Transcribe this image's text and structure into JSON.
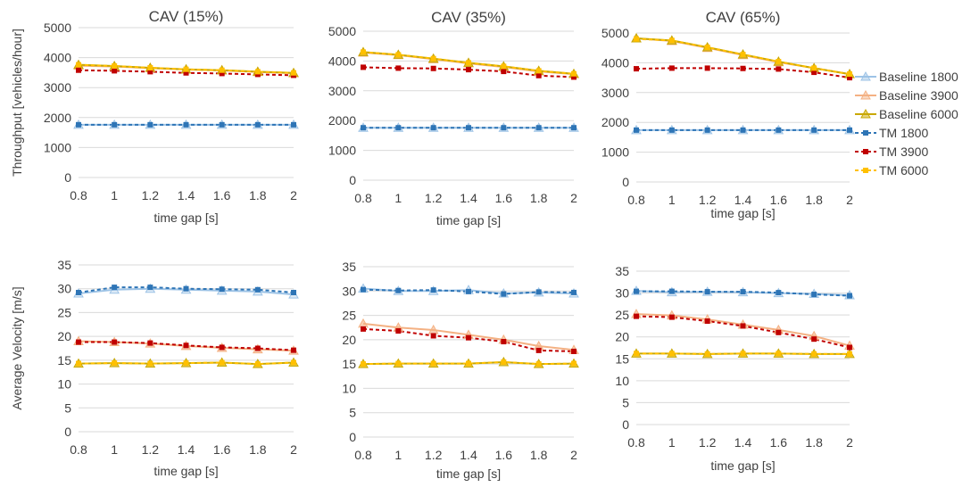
{
  "series_styles": [
    {
      "name": "Baseline 1800",
      "color": "#9dc3e6",
      "marker": "triangle",
      "dash": "none"
    },
    {
      "name": "Baseline 3900",
      "color": "#f4b183",
      "marker": "triangle",
      "dash": "none"
    },
    {
      "name": "Baseline 6000",
      "color": "#c9a800",
      "marker": "triangle",
      "dash": "none"
    },
    {
      "name": "TM 1800",
      "color": "#2e75b6",
      "marker": "square",
      "dash": "4,3"
    },
    {
      "name": "TM 3900",
      "color": "#c00000",
      "marker": "square",
      "dash": "4,3"
    },
    {
      "name": "TM 6000",
      "color": "#ffc000",
      "marker": "square",
      "dash": "4,3"
    }
  ],
  "chart_data": [
    {
      "type": "line",
      "title": "CAV (15%)",
      "xlabel": "time gap [s]",
      "ylabel": "Throughput [vehicles/hour]",
      "x": [
        0.8,
        1,
        1.2,
        1.4,
        1.6,
        1.8,
        2
      ],
      "ylim": [
        0,
        5000
      ],
      "yticks": [
        0,
        1000,
        2000,
        3000,
        4000,
        5000
      ],
      "series": [
        {
          "name": "Baseline 1800",
          "values": [
            1760,
            1760,
            1760,
            1760,
            1760,
            1760,
            1760
          ]
        },
        {
          "name": "Baseline 3900",
          "values": [
            3730,
            3700,
            3650,
            3600,
            3570,
            3520,
            3480
          ]
        },
        {
          "name": "Baseline 6000",
          "values": [
            3760,
            3720,
            3660,
            3610,
            3580,
            3530,
            3490
          ]
        },
        {
          "name": "TM 1800",
          "values": [
            1760,
            1760,
            1760,
            1760,
            1760,
            1760,
            1760
          ]
        },
        {
          "name": "TM 3900",
          "values": [
            3580,
            3560,
            3530,
            3490,
            3470,
            3440,
            3410
          ]
        },
        {
          "name": "TM 6000",
          "values": [
            3760,
            3720,
            3660,
            3610,
            3580,
            3530,
            3490
          ]
        }
      ]
    },
    {
      "type": "line",
      "title": "CAV (35%)",
      "xlabel": "time gap [s]",
      "ylabel": "",
      "x": [
        0.8,
        1,
        1.2,
        1.4,
        1.6,
        1.8,
        2
      ],
      "ylim": [
        0,
        5000
      ],
      "yticks": [
        0,
        1000,
        2000,
        3000,
        4000,
        5000
      ],
      "series": [
        {
          "name": "Baseline 1800",
          "values": [
            1760,
            1760,
            1760,
            1760,
            1760,
            1760,
            1760
          ]
        },
        {
          "name": "Baseline 3900",
          "values": [
            4280,
            4200,
            4060,
            3920,
            3800,
            3650,
            3560
          ]
        },
        {
          "name": "Baseline 6000",
          "values": [
            4300,
            4210,
            4080,
            3940,
            3820,
            3670,
            3570
          ]
        },
        {
          "name": "TM 1800",
          "values": [
            1760,
            1760,
            1760,
            1760,
            1760,
            1760,
            1760
          ]
        },
        {
          "name": "TM 3900",
          "values": [
            3790,
            3760,
            3750,
            3710,
            3650,
            3510,
            3460
          ]
        },
        {
          "name": "TM 6000",
          "values": [
            4300,
            4210,
            4080,
            3940,
            3820,
            3670,
            3570
          ]
        }
      ]
    },
    {
      "type": "line",
      "title": "CAV (65%)",
      "xlabel": "time gap [s]",
      "ylabel": "",
      "x": [
        0.8,
        1,
        1.2,
        1.4,
        1.6,
        1.8,
        2
      ],
      "ylim": [
        0,
        5000
      ],
      "yticks": [
        0,
        1000,
        2000,
        3000,
        4000,
        5000
      ],
      "series": [
        {
          "name": "Baseline 1800",
          "values": [
            1740,
            1740,
            1740,
            1740,
            1740,
            1740,
            1740
          ]
        },
        {
          "name": "Baseline 3900",
          "values": [
            4820,
            4730,
            4500,
            4260,
            4020,
            3820,
            3620
          ]
        },
        {
          "name": "Baseline 6000",
          "values": [
            4820,
            4750,
            4520,
            4280,
            4040,
            3820,
            3620
          ]
        },
        {
          "name": "TM 1800",
          "values": [
            1740,
            1740,
            1740,
            1740,
            1740,
            1740,
            1740
          ]
        },
        {
          "name": "TM 3900",
          "values": [
            3800,
            3820,
            3820,
            3810,
            3790,
            3680,
            3500
          ]
        },
        {
          "name": "TM 6000",
          "values": [
            4800,
            4750,
            4520,
            4280,
            4040,
            3820,
            3620
          ]
        }
      ]
    },
    {
      "type": "line",
      "title": "",
      "xlabel": "time gap [s]",
      "ylabel": "Average Velocity [m/s]",
      "x": [
        0.8,
        1,
        1.2,
        1.4,
        1.6,
        1.8,
        2
      ],
      "ylim": [
        0,
        35
      ],
      "yticks": [
        0,
        5,
        10,
        15,
        20,
        25,
        30,
        35
      ],
      "series": [
        {
          "name": "Baseline 1800",
          "values": [
            29.0,
            29.8,
            30.0,
            29.8,
            29.6,
            29.4,
            28.8
          ]
        },
        {
          "name": "Baseline 3900",
          "values": [
            19.0,
            18.8,
            18.5,
            18.0,
            17.6,
            17.3,
            17.0
          ]
        },
        {
          "name": "Baseline 6000",
          "values": [
            14.3,
            14.4,
            14.3,
            14.4,
            14.5,
            14.2,
            14.5
          ]
        },
        {
          "name": "TM 1800",
          "values": [
            29.2,
            30.3,
            30.3,
            30.0,
            29.9,
            29.8,
            29.2
          ]
        },
        {
          "name": "TM 3900",
          "values": [
            18.8,
            18.8,
            18.6,
            18.1,
            17.7,
            17.5,
            17.1
          ]
        },
        {
          "name": "TM 6000",
          "values": [
            14.3,
            14.4,
            14.3,
            14.4,
            14.5,
            14.2,
            14.5
          ]
        }
      ]
    },
    {
      "type": "line",
      "title": "",
      "xlabel": "time gap [s]",
      "ylabel": "",
      "x": [
        0.8,
        1,
        1.2,
        1.4,
        1.6,
        1.8,
        2
      ],
      "ylim": [
        0,
        35
      ],
      "yticks": [
        0,
        5,
        10,
        15,
        20,
        25,
        30,
        35
      ],
      "series": [
        {
          "name": "Baseline 1800",
          "values": [
            30.5,
            30.0,
            30.0,
            30.2,
            29.5,
            29.7,
            29.5
          ]
        },
        {
          "name": "Baseline 3900",
          "values": [
            23.3,
            22.5,
            22.0,
            21.0,
            20.0,
            18.7,
            17.9
          ]
        },
        {
          "name": "Baseline 6000",
          "values": [
            15.0,
            15.1,
            15.1,
            15.1,
            15.4,
            15.0,
            15.1
          ]
        },
        {
          "name": "TM 1800",
          "values": [
            30.3,
            30.1,
            30.2,
            29.9,
            29.4,
            29.8,
            29.7
          ]
        },
        {
          "name": "TM 3900",
          "values": [
            22.2,
            21.8,
            20.8,
            20.4,
            19.6,
            17.8,
            17.6
          ]
        },
        {
          "name": "TM 6000",
          "values": [
            15.0,
            15.1,
            15.1,
            15.1,
            15.4,
            15.0,
            15.1
          ]
        }
      ]
    },
    {
      "type": "line",
      "title": "",
      "xlabel": "time gap [s]",
      "ylabel": "",
      "x": [
        0.8,
        1,
        1.2,
        1.4,
        1.6,
        1.8,
        2
      ],
      "ylim": [
        0,
        35
      ],
      "yticks": [
        0,
        5,
        10,
        15,
        20,
        25,
        30,
        35
      ],
      "series": [
        {
          "name": "Baseline 1800",
          "values": [
            30.5,
            30.2,
            30.3,
            30.2,
            30.0,
            29.8,
            29.5
          ]
        },
        {
          "name": "Baseline 3900",
          "values": [
            25.2,
            24.9,
            24.0,
            22.8,
            21.6,
            20.2,
            18.0
          ]
        },
        {
          "name": "Baseline 6000",
          "values": [
            16.2,
            16.2,
            16.1,
            16.2,
            16.2,
            16.1,
            16.1
          ]
        },
        {
          "name": "TM 1800",
          "values": [
            30.4,
            30.4,
            30.3,
            30.3,
            30.1,
            29.7,
            29.4
          ]
        },
        {
          "name": "TM 3900",
          "values": [
            24.7,
            24.5,
            23.6,
            22.5,
            21.0,
            19.5,
            17.6
          ]
        },
        {
          "name": "TM 6000",
          "values": [
            16.2,
            16.2,
            16.1,
            16.2,
            16.2,
            16.1,
            16.1
          ]
        }
      ]
    }
  ]
}
